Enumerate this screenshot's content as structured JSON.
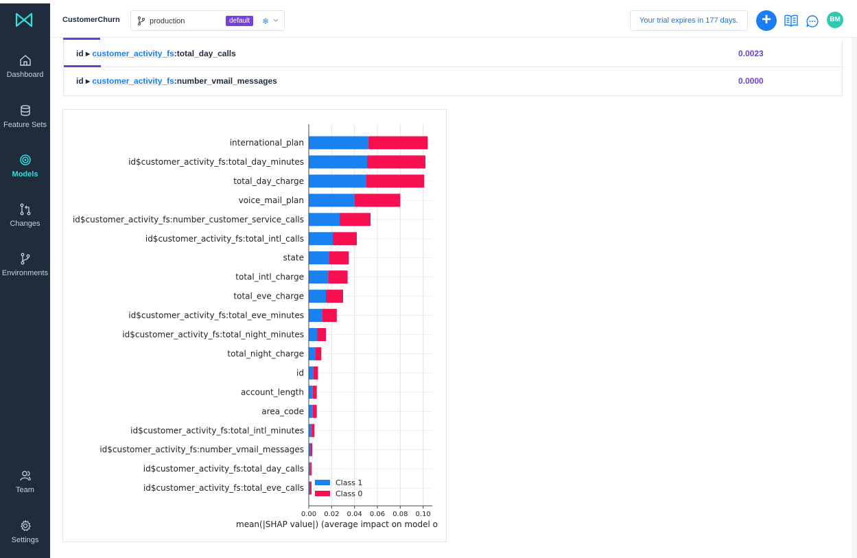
{
  "app": {
    "project": "CustomerChurn"
  },
  "branch": {
    "name": "production",
    "badge": "default"
  },
  "trial": {
    "text": "Your trial expires in 177 days."
  },
  "user": {
    "initials": "BM"
  },
  "sidebar": {
    "items": [
      {
        "label": "Dashboard",
        "icon": "home-icon"
      },
      {
        "label": "Feature Sets",
        "icon": "database-icon"
      },
      {
        "label": "Models",
        "icon": "target-icon",
        "active": true
      },
      {
        "label": "Changes",
        "icon": "pull-request-icon"
      },
      {
        "label": "Environments",
        "icon": "branch-icon"
      },
      {
        "label": "Team",
        "icon": "users-icon"
      },
      {
        "label": "Settings",
        "icon": "gear-icon"
      }
    ]
  },
  "features": [
    {
      "prefix": "id ▸ ",
      "fs": "customer_activity_fs",
      "name": ":total_day_calls",
      "value": "0.0023"
    },
    {
      "prefix": "id ▸ ",
      "fs": "customer_activity_fs",
      "name": ":number_vmail_messages",
      "value": "0.0000"
    }
  ],
  "chart_data": {
    "type": "bar",
    "orientation": "horizontal",
    "stacked": true,
    "categories": [
      "international_plan",
      "id$customer_activity_fs:total_day_minutes",
      "total_day_charge",
      "voice_mail_plan",
      "id$customer_activity_fs:number_customer_service_calls",
      "id$customer_activity_fs:total_intl_calls",
      "state",
      "total_intl_charge",
      "total_eve_charge",
      "id$customer_activity_fs:total_eve_minutes",
      "id$customer_activity_fs:total_night_minutes",
      "total_night_charge",
      "id",
      "account_length",
      "area_code",
      "id$customer_activity_fs:total_intl_minutes",
      "id$customer_activity_fs:number_vmail_messages",
      "id$customer_activity_fs:total_day_calls",
      "id$customer_activity_fs:total_eve_calls"
    ],
    "series": [
      {
        "name": "Class 1",
        "color": "#1a82f0",
        "values": [
          0.052,
          0.051,
          0.05,
          0.04,
          0.027,
          0.021,
          0.018,
          0.017,
          0.015,
          0.012,
          0.0075,
          0.0055,
          0.004,
          0.0035,
          0.0035,
          0.0025,
          0.0015,
          0.0013,
          0.0012
        ]
      },
      {
        "name": "Class 0",
        "color": "#f7104f",
        "values": [
          0.052,
          0.051,
          0.051,
          0.04,
          0.027,
          0.021,
          0.017,
          0.017,
          0.015,
          0.0125,
          0.0075,
          0.0055,
          0.004,
          0.0035,
          0.0035,
          0.0025,
          0.0015,
          0.0013,
          0.0012
        ]
      }
    ],
    "xticks": [
      "0.00",
      "0.02",
      "0.04",
      "0.06",
      "0.08",
      "0.10"
    ],
    "xlim": [
      0,
      0.108
    ],
    "xlabel": "mean(|SHAP value|) (average impact on model o",
    "legend": "bottom-left",
    "grid": true
  }
}
